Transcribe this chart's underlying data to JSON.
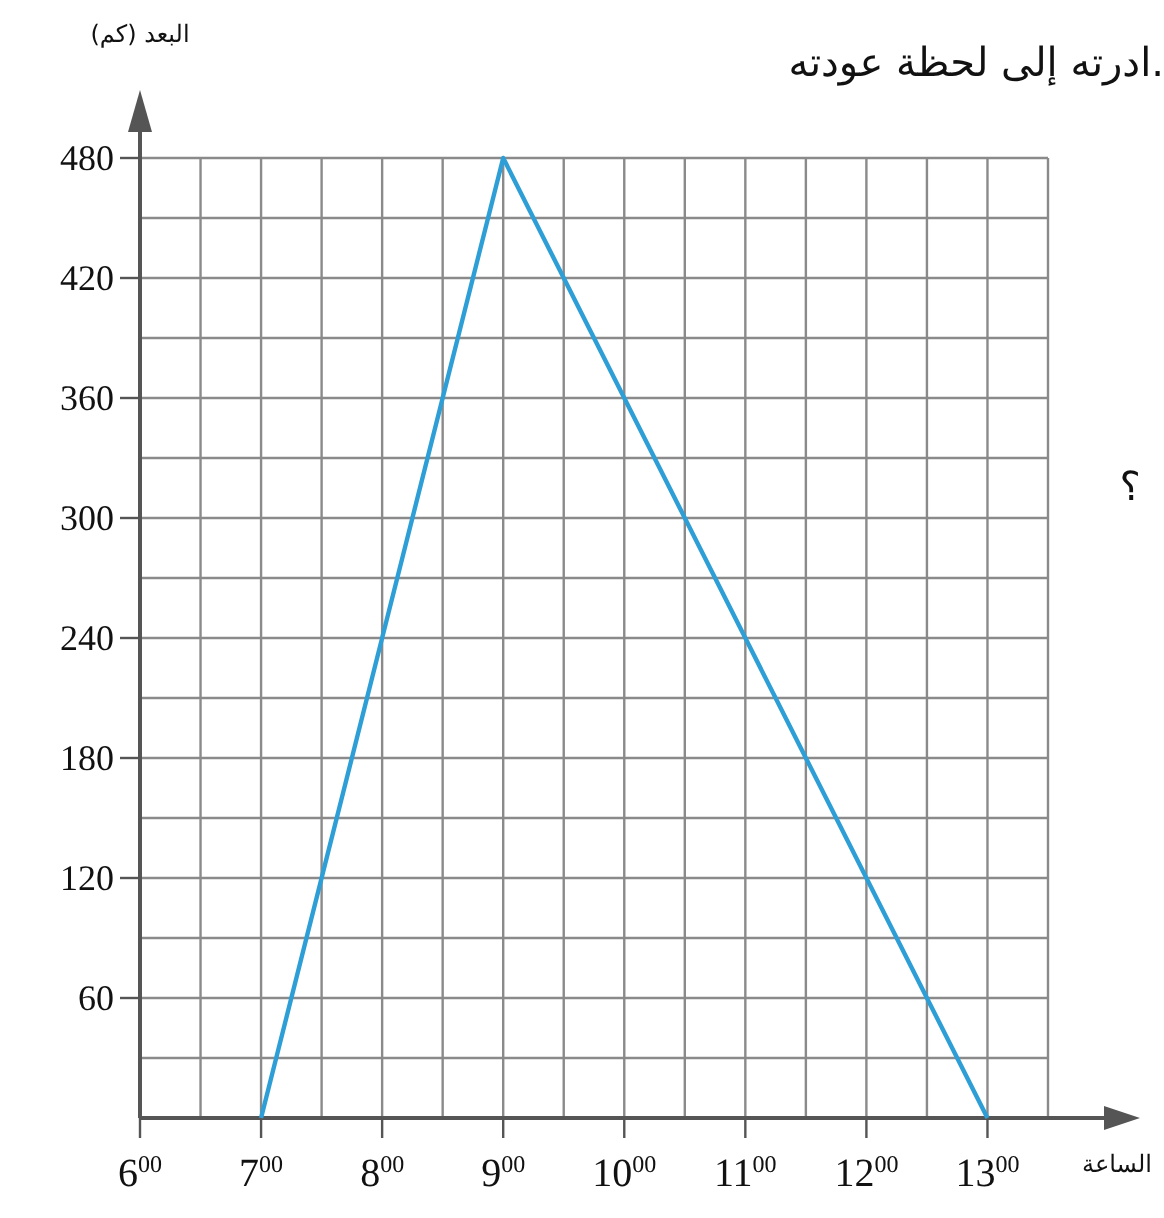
{
  "chart_data": {
    "type": "line",
    "xlabel": "الساعة",
    "ylabel": "البعد (كم)",
    "annotations": [
      "ادرته إلى لحظة عودته.",
      "؟"
    ],
    "categories": [
      "6$^{00}$",
      "7$^{00}$",
      "8$^{00}$",
      "9$^{00}$",
      "10$^{00}$",
      "11$^{00}$",
      "12$^{00}$",
      "13$^{00}$"
    ],
    "series": [
      {
        "color": "#2e9fd6",
        "values": [
          null,
          0,
          240,
          480,
          360,
          240,
          120,
          0
        ]
      }
    ],
    "ylim": [
      0,
      480
    ],
    "yticks": [
      {
        "value": 30,
        "label": null
      },
      60,
      {
        "value": 90,
        "label": null
      },
      120,
      {
        "value": 150,
        "label": null
      },
      180,
      {
        "value": 210,
        "label": null
      },
      240,
      {
        "value": 270,
        "label": null
      },
      300,
      {
        "value": 330,
        "label": null
      },
      360,
      {
        "value": 390,
        "label": null
      },
      420,
      {
        "value": 450,
        "label": null
      },
      480
    ],
    "grid": true,
    "marker": "none",
    "line_style": "solid"
  }
}
